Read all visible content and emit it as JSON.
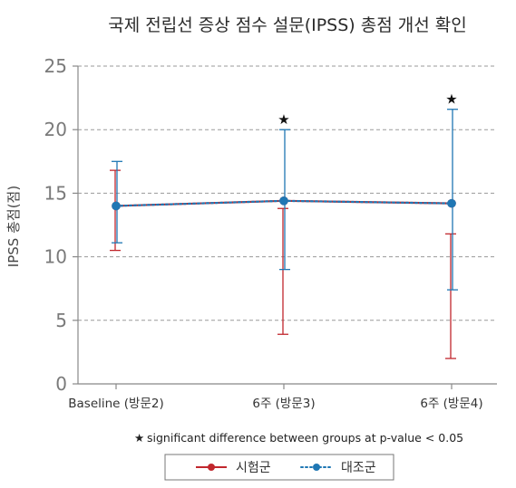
{
  "chart_data": {
    "type": "line",
    "title": "국제 전립선 증상 점수 설문(IPSS) 총점 개선 확인",
    "xlabel": "",
    "ylabel": "IPSS 총점(점)",
    "categories": [
      "Baseline (방문2)",
      "6주 (방문3)",
      "6주 (방문4)"
    ],
    "yticks": [
      "0",
      "5",
      "10",
      "15",
      "20",
      "25"
    ],
    "ylim": [
      0,
      25
    ],
    "grid": true,
    "series": [
      {
        "name": "시험군",
        "color": "#c1272d",
        "style": "solid",
        "values": [
          14.0,
          14.4,
          14.2
        ],
        "err_low": [
          10.5,
          3.9,
          2.0
        ],
        "err_high": [
          16.8,
          13.8,
          11.8
        ]
      },
      {
        "name": "대조군",
        "color": "#1f77b4",
        "style": "dotted",
        "values": [
          14.0,
          14.4,
          14.2
        ],
        "err_low": [
          11.1,
          9.0,
          7.4
        ],
        "err_high": [
          17.5,
          20.0,
          21.6
        ]
      }
    ],
    "significance": [
      false,
      true,
      true
    ],
    "significance_symbol": "★",
    "footnote": "significant difference between groups at p-value < 0.05",
    "legend_position": "bottom"
  }
}
